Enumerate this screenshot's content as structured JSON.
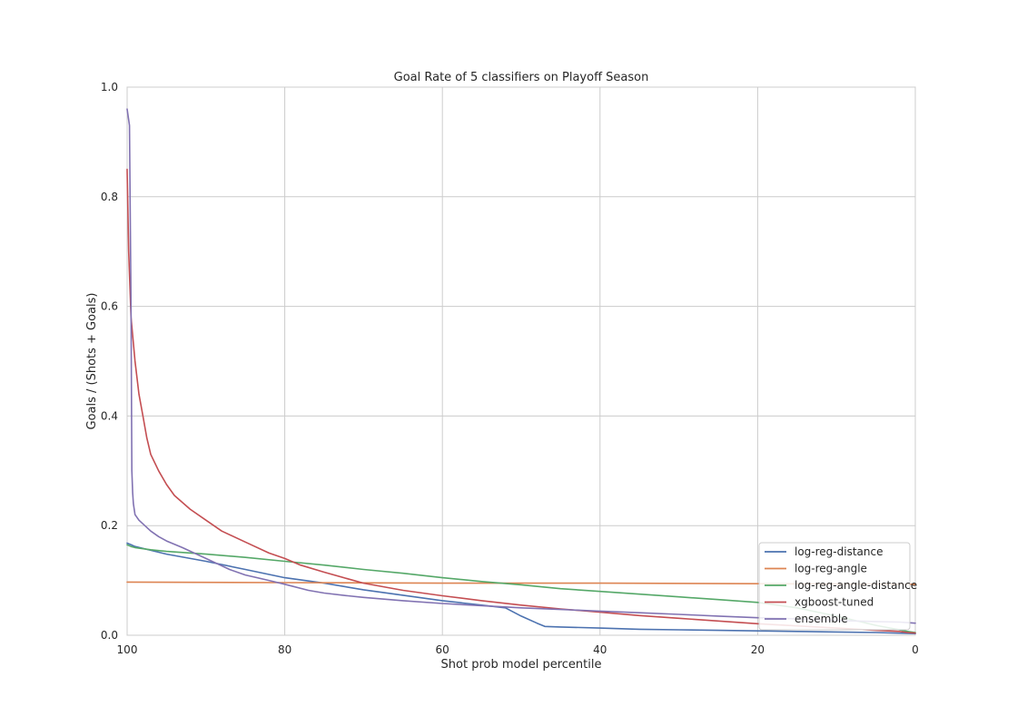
{
  "chart_data": {
    "type": "line",
    "title": "Goal Rate of 5 classifiers on Playoff Season",
    "xlabel": "Shot prob model percentile",
    "ylabel": "Goals / (Shots + Goals)",
    "xlim": [
      100,
      0
    ],
    "ylim": [
      0,
      1.0
    ],
    "x_reversed": true,
    "xticks": [
      100,
      80,
      60,
      40,
      20,
      0
    ],
    "xtick_labels": [
      "100",
      "80",
      "60",
      "40",
      "20",
      "0"
    ],
    "yticks": [
      0,
      0.2,
      0.4,
      0.6,
      0.8,
      1.0
    ],
    "ytick_labels": [
      "0.0",
      "0.2",
      "0.4",
      "0.6",
      "0.8",
      "1.0"
    ],
    "grid": true,
    "legend_position": "lower-right",
    "series": [
      {
        "name": "log-reg-distance",
        "color": "#4c72b0",
        "x": [
          100,
          99.5,
          99,
          97,
          95,
          90,
          85,
          80,
          75,
          70,
          65,
          60,
          55,
          52,
          50,
          48,
          47,
          45,
          40,
          35,
          30,
          25,
          20,
          15,
          10,
          5,
          0
        ],
        "y": [
          0.168,
          0.165,
          0.162,
          0.155,
          0.148,
          0.135,
          0.12,
          0.105,
          0.095,
          0.083,
          0.073,
          0.063,
          0.055,
          0.05,
          0.035,
          0.022,
          0.016,
          0.015,
          0.013,
          0.011,
          0.01,
          0.009,
          0.008,
          0.007,
          0.006,
          0.005,
          0.003
        ]
      },
      {
        "name": "log-reg-angle",
        "color": "#dd8452",
        "x": [
          100,
          80,
          60,
          40,
          20,
          0
        ],
        "y": [
          0.097,
          0.096,
          0.095,
          0.095,
          0.094,
          0.093
        ]
      },
      {
        "name": "log-reg-angle-distance",
        "color": "#55a868",
        "x": [
          100,
          99.5,
          99,
          97,
          95,
          90,
          85,
          80,
          75,
          70,
          65,
          60,
          55,
          50,
          45,
          40,
          35,
          30,
          25,
          20,
          15,
          10,
          5,
          2,
          1,
          0
        ],
        "y": [
          0.165,
          0.162,
          0.16,
          0.156,
          0.153,
          0.148,
          0.142,
          0.135,
          0.128,
          0.12,
          0.113,
          0.105,
          0.098,
          0.092,
          0.085,
          0.08,
          0.075,
          0.07,
          0.065,
          0.06,
          0.05,
          0.035,
          0.018,
          0.01,
          0.007,
          0.005
        ]
      },
      {
        "name": "xgboost-tuned",
        "color": "#c44e52",
        "x": [
          100,
          99.8,
          99.5,
          99,
          98.5,
          98,
          97.5,
          97,
          96,
          95,
          94,
          92,
          90,
          88,
          85,
          82,
          80,
          78,
          75,
          72,
          70,
          65,
          60,
          55,
          50,
          45,
          40,
          35,
          30,
          25,
          20,
          15,
          10,
          5,
          2,
          1,
          0
        ],
        "y": [
          0.85,
          0.7,
          0.58,
          0.5,
          0.44,
          0.4,
          0.36,
          0.33,
          0.3,
          0.275,
          0.255,
          0.23,
          0.21,
          0.19,
          0.17,
          0.15,
          0.14,
          0.128,
          0.115,
          0.103,
          0.095,
          0.082,
          0.072,
          0.063,
          0.055,
          0.048,
          0.042,
          0.036,
          0.031,
          0.026,
          0.021,
          0.017,
          0.013,
          0.009,
          0.007,
          0.005,
          0.004
        ]
      },
      {
        "name": "ensemble",
        "color": "#8172b2",
        "x": [
          100,
          99.7,
          99.5,
          99.4,
          99.3,
          99.2,
          99,
          98.5,
          97,
          96,
          95,
          93,
          90,
          87,
          85,
          82,
          80,
          77,
          75,
          72,
          70,
          65,
          60,
          55,
          50,
          45,
          40,
          35,
          30,
          25,
          20,
          15,
          10,
          5,
          2,
          1,
          0
        ],
        "y": [
          0.96,
          0.93,
          0.6,
          0.3,
          0.26,
          0.24,
          0.22,
          0.21,
          0.19,
          0.18,
          0.172,
          0.16,
          0.14,
          0.12,
          0.11,
          0.1,
          0.093,
          0.082,
          0.077,
          0.072,
          0.069,
          0.063,
          0.058,
          0.054,
          0.05,
          0.047,
          0.044,
          0.041,
          0.038,
          0.035,
          0.032,
          0.03,
          0.027,
          0.025,
          0.024,
          0.023,
          0.022
        ]
      }
    ]
  }
}
